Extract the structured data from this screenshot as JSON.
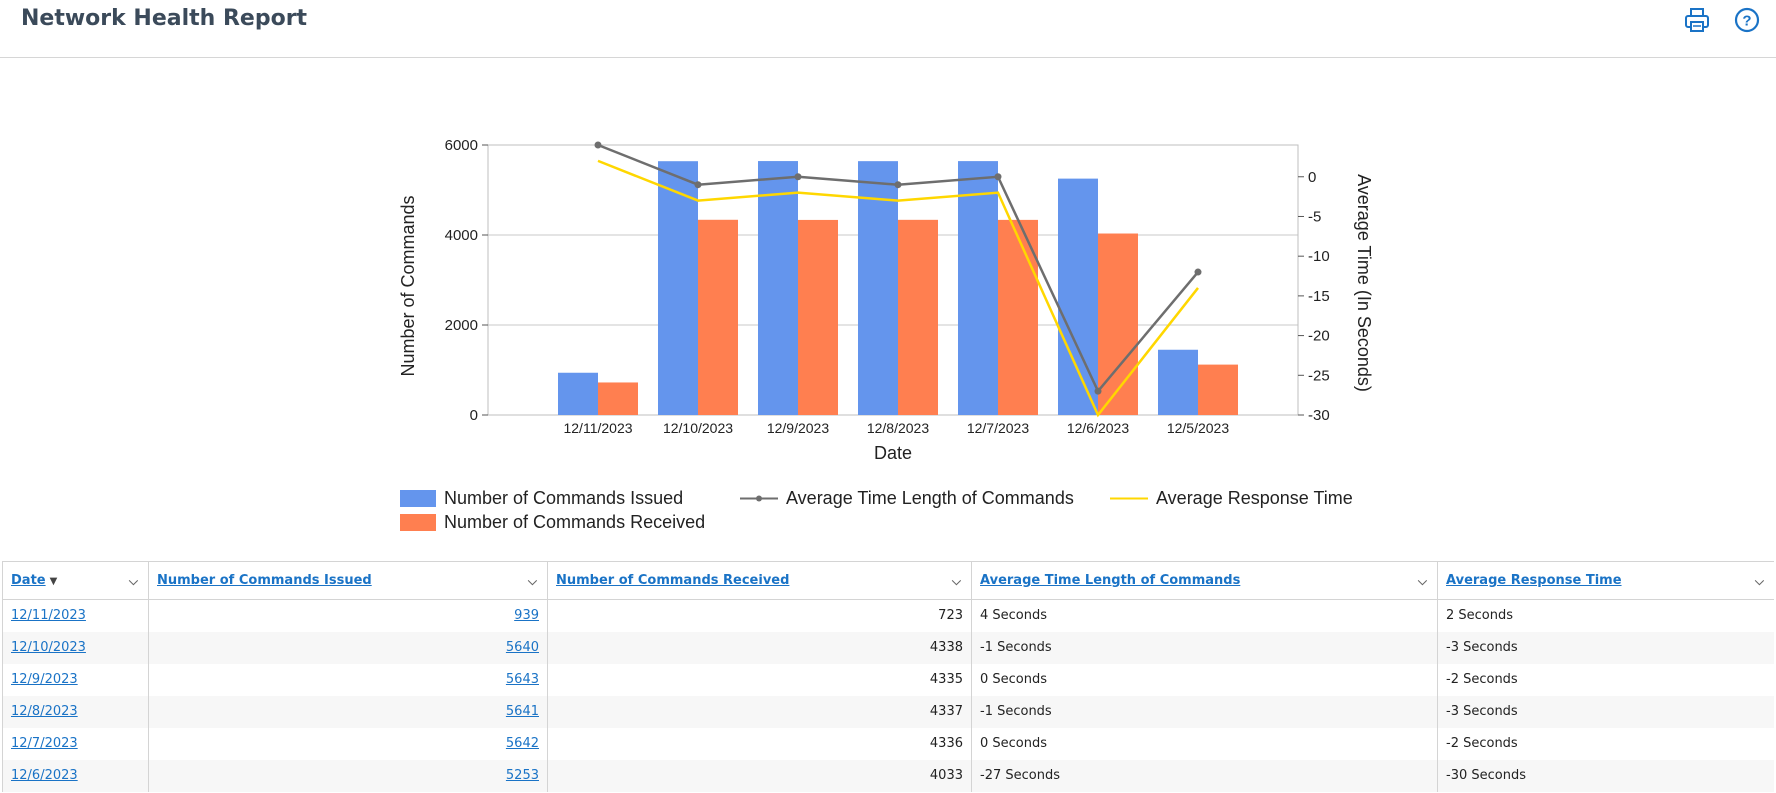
{
  "header": {
    "title": "Network Health Report"
  },
  "chart_data": {
    "type": "bar",
    "xlabel": "Date",
    "ylabel": "Number of Commands",
    "y2label": "Average Time (In Seconds)",
    "categories": [
      "12/11/2023",
      "12/10/2023",
      "12/9/2023",
      "12/8/2023",
      "12/7/2023",
      "12/6/2023",
      "12/5/2023"
    ],
    "ylim": [
      0,
      6000
    ],
    "yticks": [
      0,
      2000,
      4000,
      6000
    ],
    "y2lim": [
      -30,
      4
    ],
    "y2ticks": [
      0,
      -5,
      -10,
      -15,
      -20,
      -25,
      -30
    ],
    "grid": true,
    "legend_position": "bottom",
    "series": [
      {
        "name": "Number of Commands Issued",
        "kind": "bar",
        "axis": "left",
        "color": "#6495ed",
        "values": [
          939,
          5640,
          5643,
          5641,
          5642,
          5253,
          1450
        ]
      },
      {
        "name": "Number of Commands Received",
        "kind": "bar",
        "axis": "left",
        "color": "#ff7f50",
        "values": [
          723,
          4338,
          4335,
          4337,
          4336,
          4033,
          1120
        ]
      },
      {
        "name": "Average Time Length of Commands",
        "kind": "line",
        "axis": "right",
        "color": "#6e6e6e",
        "markers": true,
        "values": [
          4,
          -1,
          0,
          -1,
          0,
          -27,
          -12
        ]
      },
      {
        "name": "Average Response Time",
        "kind": "line",
        "axis": "right",
        "color": "#ffd700",
        "markers": false,
        "values": [
          2,
          -3,
          -2,
          -3,
          -2,
          -30,
          -14
        ]
      }
    ]
  },
  "table": {
    "columns": [
      "Date",
      "Number of Commands Issued",
      "Number of Commands Received",
      "Average Time Length of Commands",
      "Average Response Time"
    ],
    "rows": [
      {
        "date": "12/11/2023",
        "issued": "939",
        "received": "723",
        "avg_len": "4 Seconds",
        "avg_resp": "2 Seconds"
      },
      {
        "date": "12/10/2023",
        "issued": "5640",
        "received": "4338",
        "avg_len": "-1 Seconds",
        "avg_resp": "-3 Seconds"
      },
      {
        "date": "12/9/2023",
        "issued": "5643",
        "received": "4335",
        "avg_len": "0 Seconds",
        "avg_resp": "-2 Seconds"
      },
      {
        "date": "12/8/2023",
        "issued": "5641",
        "received": "4337",
        "avg_len": "-1 Seconds",
        "avg_resp": "-3 Seconds"
      },
      {
        "date": "12/7/2023",
        "issued": "5642",
        "received": "4336",
        "avg_len": "0 Seconds",
        "avg_resp": "-2 Seconds"
      },
      {
        "date": "12/6/2023",
        "issued": "5253",
        "received": "4033",
        "avg_len": "-27 Seconds",
        "avg_resp": "-30 Seconds"
      }
    ]
  },
  "icons": {
    "print": "print-icon",
    "help": "help-icon"
  }
}
